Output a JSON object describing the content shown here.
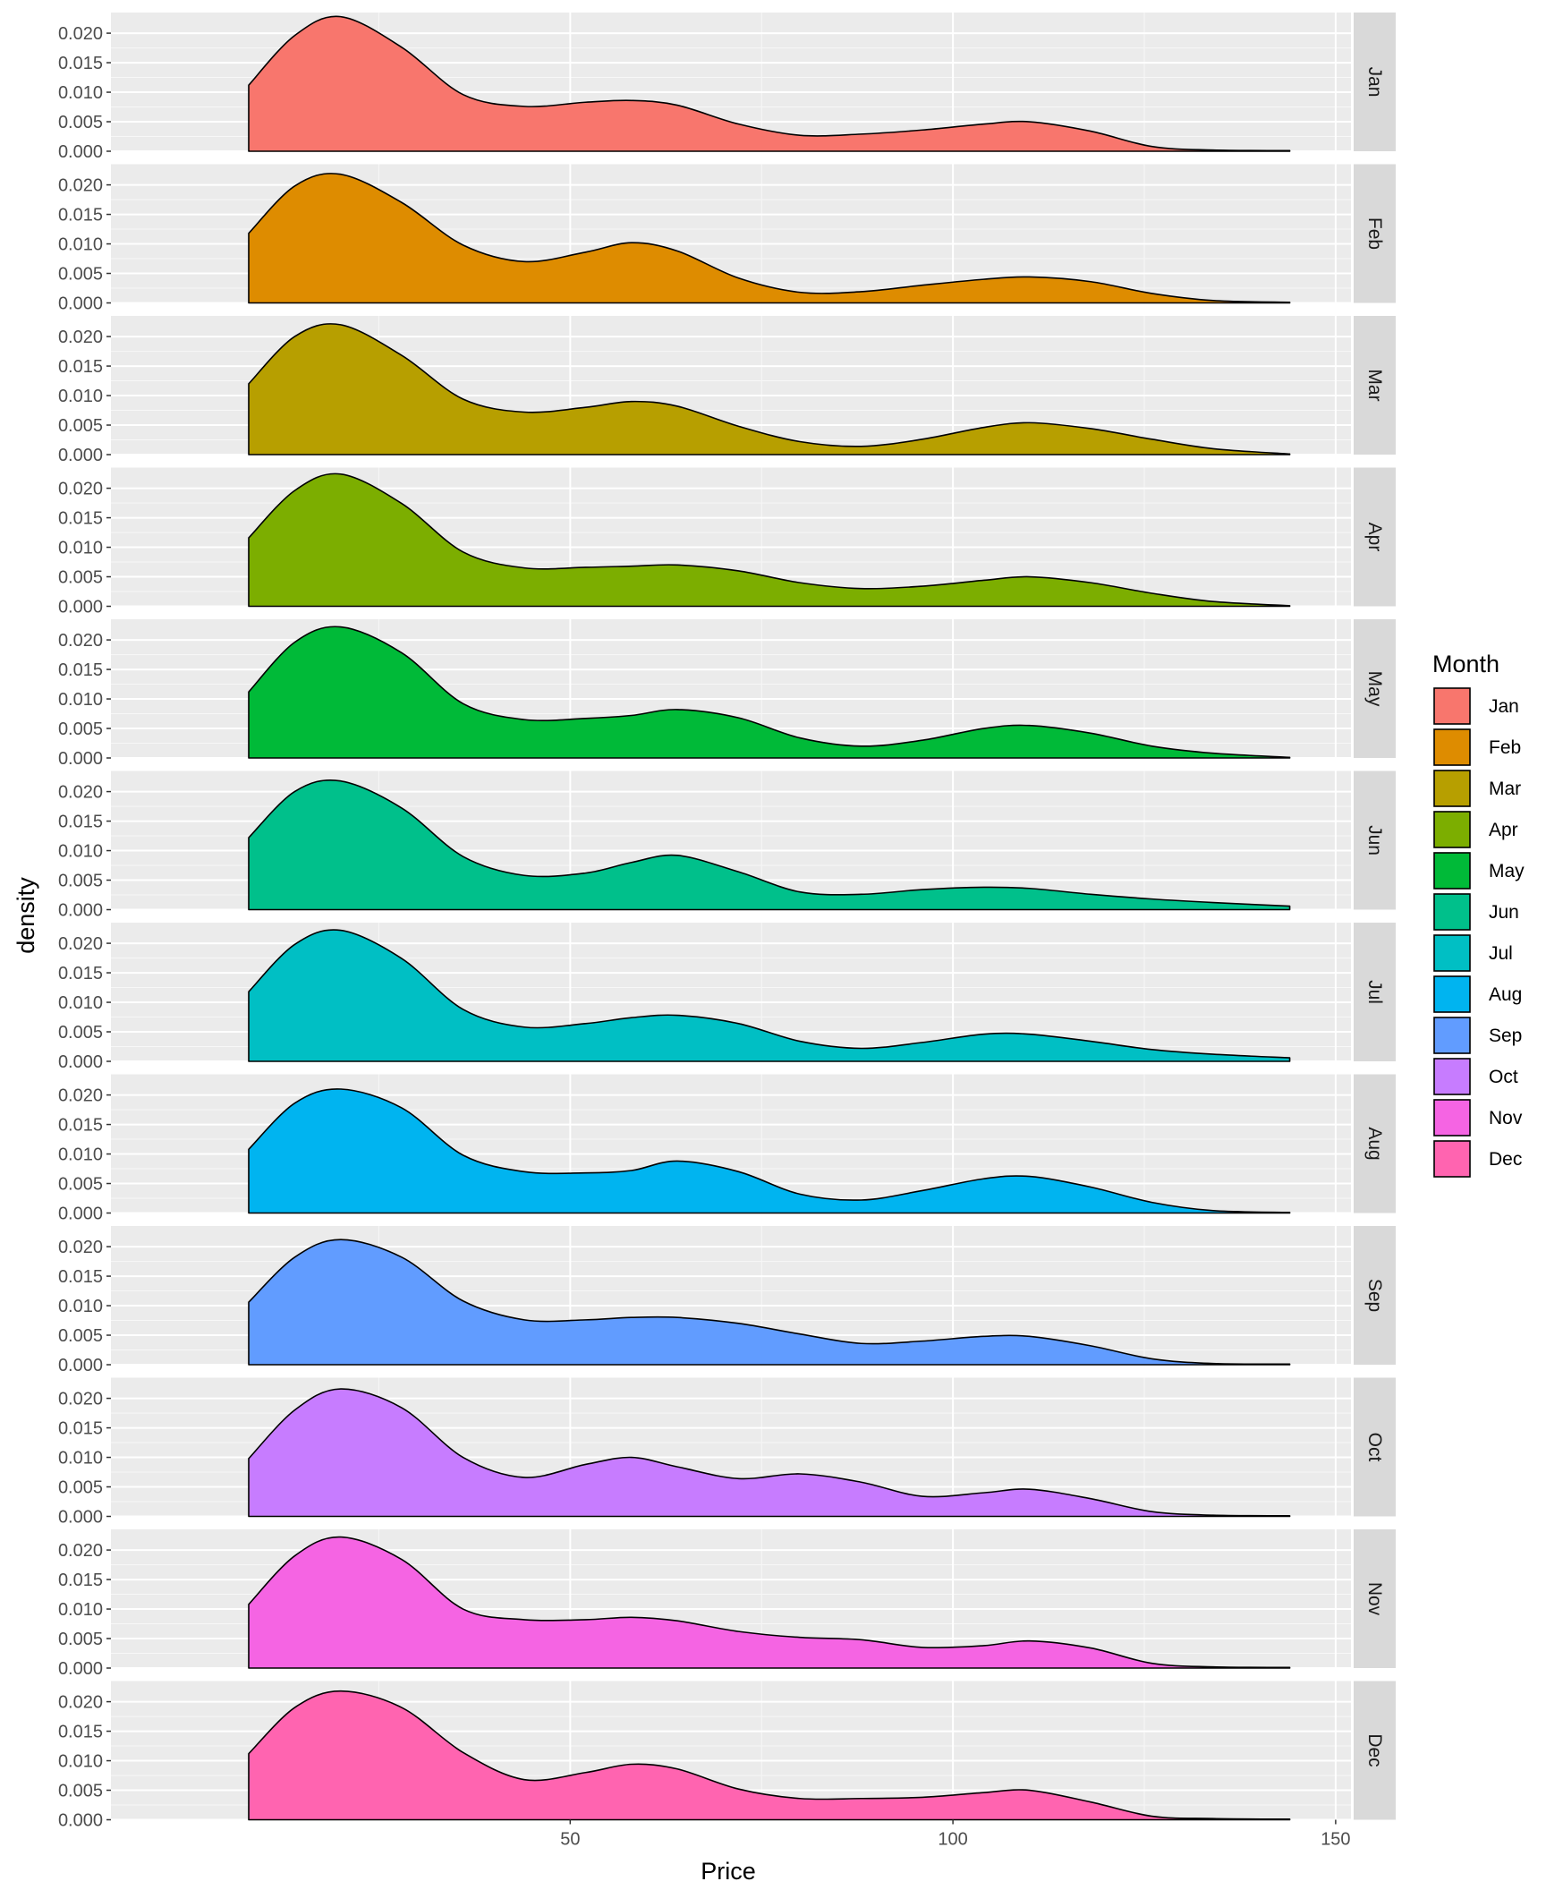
{
  "chart_data": {
    "type": "area",
    "subtype": "faceted density plot",
    "xlabel": "Price",
    "ylabel": "density",
    "xlim": [
      -10,
      152
    ],
    "ylim": [
      0,
      0.0235
    ],
    "x_ticks": [
      50,
      100,
      150
    ],
    "x_tick_labels": [
      "50",
      "100",
      "150"
    ],
    "y_ticks": [
      0,
      0.005,
      0.01,
      0.015,
      0.02
    ],
    "y_tick_labels": [
      "0.000",
      "0.005",
      "0.010",
      "0.015",
      "0.020"
    ],
    "grid": true,
    "facet_strip_position": "right",
    "legend": {
      "title": "Month",
      "placement": "right",
      "entries": [
        "Jan",
        "Feb",
        "Mar",
        "Apr",
        "May",
        "Jun",
        "Jul",
        "Aug",
        "Sep",
        "Oct",
        "Nov",
        "Dec"
      ]
    },
    "series": [
      {
        "name": "Jan",
        "color": "#F8766D",
        "x": [
          8,
          14,
          20,
          28,
          36,
          44,
          52,
          58,
          64,
          72,
          80,
          88,
          96,
          104,
          110,
          118,
          126,
          134,
          144
        ],
        "y": [
          0.0112,
          0.0196,
          0.0228,
          0.0176,
          0.0096,
          0.0076,
          0.0083,
          0.0086,
          0.0078,
          0.0046,
          0.0027,
          0.0029,
          0.0036,
          0.0046,
          0.005,
          0.0034,
          0.0008,
          0.0002,
          0.0001
        ]
      },
      {
        "name": "Feb",
        "color": "#DE8C00",
        "x": [
          8,
          14,
          20,
          28,
          36,
          44,
          52,
          58,
          64,
          72,
          80,
          88,
          96,
          104,
          110,
          118,
          126,
          134,
          144
        ],
        "y": [
          0.0118,
          0.0198,
          0.0218,
          0.017,
          0.0098,
          0.007,
          0.0086,
          0.0102,
          0.0088,
          0.0042,
          0.0018,
          0.0019,
          0.003,
          0.004,
          0.0044,
          0.0036,
          0.0016,
          0.0004,
          0.0001
        ]
      },
      {
        "name": "Mar",
        "color": "#B79F00",
        "x": [
          8,
          14,
          20,
          28,
          36,
          44,
          52,
          58,
          64,
          72,
          80,
          88,
          96,
          104,
          110,
          118,
          126,
          134,
          144
        ],
        "y": [
          0.012,
          0.02,
          0.022,
          0.0168,
          0.0094,
          0.0072,
          0.008,
          0.009,
          0.0082,
          0.0048,
          0.0022,
          0.0014,
          0.0026,
          0.0046,
          0.0054,
          0.0044,
          0.0026,
          0.001,
          0.0001
        ]
      },
      {
        "name": "Apr",
        "color": "#7CAE00",
        "x": [
          8,
          14,
          20,
          28,
          36,
          44,
          52,
          58,
          64,
          72,
          80,
          88,
          96,
          104,
          110,
          118,
          126,
          134,
          144
        ],
        "y": [
          0.0116,
          0.0196,
          0.0224,
          0.0174,
          0.0092,
          0.0065,
          0.0066,
          0.0068,
          0.007,
          0.006,
          0.004,
          0.003,
          0.0034,
          0.0044,
          0.005,
          0.004,
          0.0022,
          0.0008,
          0.0001
        ]
      },
      {
        "name": "May",
        "color": "#00BA38",
        "x": [
          8,
          14,
          20,
          28,
          36,
          44,
          52,
          58,
          64,
          72,
          80,
          88,
          96,
          104,
          110,
          118,
          126,
          134,
          144
        ],
        "y": [
          0.0112,
          0.0196,
          0.0222,
          0.0178,
          0.0092,
          0.0065,
          0.0067,
          0.0072,
          0.0082,
          0.0068,
          0.0034,
          0.002,
          0.003,
          0.005,
          0.0055,
          0.0042,
          0.002,
          0.0008,
          0.0001
        ]
      },
      {
        "name": "Jun",
        "color": "#00C08B",
        "x": [
          8,
          14,
          20,
          28,
          36,
          44,
          52,
          58,
          64,
          72,
          80,
          88,
          96,
          104,
          110,
          118,
          126,
          134,
          144
        ],
        "y": [
          0.0122,
          0.02,
          0.0218,
          0.0172,
          0.009,
          0.0058,
          0.0062,
          0.008,
          0.0092,
          0.0064,
          0.003,
          0.0026,
          0.0034,
          0.0038,
          0.0036,
          0.0026,
          0.0018,
          0.0012,
          0.0006
        ]
      },
      {
        "name": "Jul",
        "color": "#00BFC4",
        "x": [
          8,
          14,
          20,
          28,
          36,
          44,
          52,
          58,
          64,
          72,
          80,
          88,
          96,
          104,
          110,
          118,
          126,
          134,
          144
        ],
        "y": [
          0.0118,
          0.0198,
          0.0222,
          0.0174,
          0.0088,
          0.0058,
          0.0064,
          0.0074,
          0.0078,
          0.0064,
          0.0034,
          0.0022,
          0.0032,
          0.0046,
          0.0046,
          0.0034,
          0.002,
          0.0012,
          0.0006
        ]
      },
      {
        "name": "Aug",
        "color": "#00B4F0",
        "x": [
          8,
          14,
          20,
          28,
          36,
          44,
          52,
          58,
          64,
          72,
          80,
          88,
          96,
          104,
          110,
          118,
          126,
          134,
          144
        ],
        "y": [
          0.0108,
          0.0186,
          0.021,
          0.0178,
          0.0098,
          0.007,
          0.0068,
          0.0072,
          0.0088,
          0.007,
          0.0032,
          0.0022,
          0.0038,
          0.0058,
          0.0062,
          0.0044,
          0.0018,
          0.0004,
          0.0001
        ]
      },
      {
        "name": "Sep",
        "color": "#619CFF",
        "x": [
          8,
          14,
          20,
          28,
          36,
          44,
          52,
          58,
          64,
          72,
          80,
          88,
          96,
          104,
          110,
          118,
          126,
          134,
          144
        ],
        "y": [
          0.0106,
          0.0182,
          0.0212,
          0.0182,
          0.0108,
          0.0076,
          0.0076,
          0.008,
          0.008,
          0.007,
          0.0052,
          0.0036,
          0.004,
          0.0048,
          0.0048,
          0.0032,
          0.001,
          0.0002,
          0.0001
        ]
      },
      {
        "name": "Oct",
        "color": "#C77CFF",
        "x": [
          8,
          14,
          20,
          28,
          36,
          44,
          52,
          58,
          64,
          72,
          80,
          88,
          96,
          104,
          110,
          118,
          126,
          134,
          144
        ],
        "y": [
          0.0098,
          0.018,
          0.0216,
          0.0184,
          0.01,
          0.0066,
          0.0088,
          0.01,
          0.0084,
          0.0064,
          0.0072,
          0.0058,
          0.0034,
          0.004,
          0.0046,
          0.003,
          0.0008,
          0.0002,
          0.0001
        ]
      },
      {
        "name": "Nov",
        "color": "#F564E3",
        "x": [
          8,
          14,
          20,
          28,
          36,
          44,
          52,
          58,
          64,
          72,
          80,
          88,
          96,
          104,
          110,
          118,
          126,
          134,
          144
        ],
        "y": [
          0.0108,
          0.019,
          0.0222,
          0.0184,
          0.01,
          0.0082,
          0.0082,
          0.0086,
          0.008,
          0.0062,
          0.0052,
          0.0048,
          0.0035,
          0.0038,
          0.0046,
          0.0034,
          0.0008,
          0.0002,
          0.0001
        ]
      },
      {
        "name": "Dec",
        "color": "#FF64B0",
        "x": [
          8,
          14,
          20,
          28,
          36,
          44,
          52,
          58,
          64,
          72,
          80,
          88,
          96,
          104,
          110,
          118,
          126,
          134,
          144
        ],
        "y": [
          0.0112,
          0.019,
          0.0218,
          0.019,
          0.0114,
          0.0068,
          0.008,
          0.0094,
          0.0086,
          0.0052,
          0.0036,
          0.0036,
          0.0038,
          0.0046,
          0.005,
          0.003,
          0.0006,
          0.0002,
          0.0001
        ]
      }
    ]
  }
}
